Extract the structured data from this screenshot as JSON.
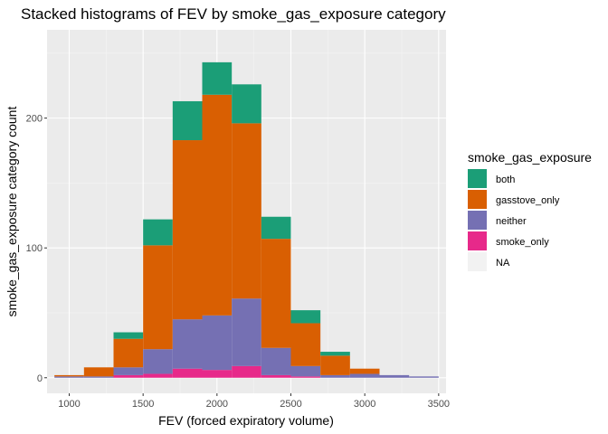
{
  "chart_data": {
    "type": "bar",
    "stacked": true,
    "title": "Stacked histograms of FEV by smoke_gas_exposure category",
    "xlabel": "FEV (forced expiratory volume)",
    "ylabel": "smoke_gas_exposure category count",
    "legend_title": "smoke_gas_exposure",
    "legend_position": "right",
    "grid": true,
    "panel_background": "#ebebeb",
    "xlim": [
      850,
      3550
    ],
    "ylim": [
      -12,
      268
    ],
    "x_ticks": [
      1000,
      1500,
      2000,
      2500,
      3000,
      3500
    ],
    "y_ticks": [
      0,
      100,
      200
    ],
    "x_tick_labels": [
      "1000",
      "1500",
      "2000",
      "2500",
      "3000",
      "3500"
    ],
    "y_tick_labels": [
      "0",
      "100",
      "200"
    ],
    "bin_width": 200,
    "bin_centers": [
      1000,
      1200,
      1400,
      1600,
      1800,
      2000,
      2200,
      2400,
      2600,
      2800,
      3000,
      3200,
      3400
    ],
    "series": [
      {
        "name": "NA",
        "color": "#f2f2f2",
        "values": [
          0,
          0,
          0,
          0,
          0,
          0,
          0,
          0,
          0,
          0,
          0,
          0,
          0
        ]
      },
      {
        "name": "smoke_only",
        "color": "#e7298a",
        "values": [
          0,
          0,
          2,
          3,
          7,
          6,
          9,
          2,
          1,
          0,
          0,
          0,
          0
        ]
      },
      {
        "name": "neither",
        "color": "#7570b3",
        "values": [
          1,
          1,
          6,
          19,
          38,
          42,
          52,
          21,
          8,
          2,
          3,
          2,
          1
        ]
      },
      {
        "name": "gasstove_only",
        "color": "#d95f02",
        "values": [
          1,
          7,
          22,
          80,
          138,
          170,
          135,
          84,
          33,
          15,
          4,
          0,
          0
        ]
      },
      {
        "name": "both",
        "color": "#1b9e77",
        "values": [
          0,
          0,
          5,
          20,
          30,
          25,
          30,
          17,
          10,
          3,
          0,
          0,
          0
        ]
      }
    ],
    "legend_order": [
      "both",
      "gasstove_only",
      "neither",
      "smoke_only",
      "NA"
    ]
  }
}
